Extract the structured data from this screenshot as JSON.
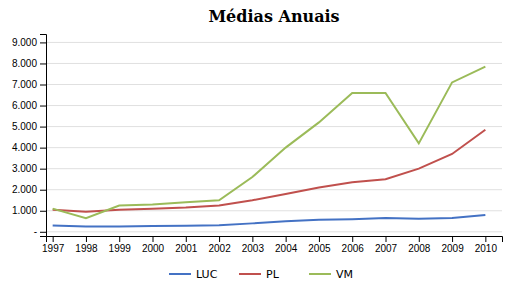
{
  "chart_data": {
    "type": "line",
    "title": "Médias Anuais",
    "x": [
      1997,
      1998,
      1999,
      2000,
      2001,
      2002,
      2003,
      2004,
      2005,
      2006,
      2007,
      2008,
      2009,
      2010
    ],
    "series": [
      {
        "name": "LUC",
        "color": "#4472C4",
        "values": [
          300,
          250,
          250,
          280,
          290,
          310,
          400,
          500,
          570,
          600,
          650,
          620,
          650,
          800
        ]
      },
      {
        "name": "PL",
        "color": "#C0504D",
        "values": [
          1050,
          950,
          1050,
          1100,
          1150,
          1250,
          1500,
          1800,
          2100,
          2350,
          2500,
          3000,
          3700,
          4850
        ]
      },
      {
        "name": "VM",
        "color": "#9BBB59",
        "values": [
          1100,
          650,
          1250,
          1300,
          1400,
          1500,
          2600,
          4000,
          5200,
          6600,
          6600,
          4200,
          7100,
          7850
        ]
      }
    ],
    "xlim": [
      1996.8,
      2010.5
    ],
    "xticks": [
      1997,
      1998,
      1999,
      2000,
      2001,
      2002,
      2003,
      2004,
      2005,
      2006,
      2007,
      2008,
      2009,
      2010
    ],
    "ylim": [
      -200,
      9400
    ],
    "yticks": [
      {
        "value": 0,
        "label": "-"
      },
      {
        "value": 1000,
        "label": "1.000"
      },
      {
        "value": 2000,
        "label": "2.000"
      },
      {
        "value": 3000,
        "label": "3.000"
      },
      {
        "value": 4000,
        "label": "4.000"
      },
      {
        "value": 5000,
        "label": "5.000"
      },
      {
        "value": 6000,
        "label": "6.000"
      },
      {
        "value": 7000,
        "label": "7.000"
      },
      {
        "value": 8000,
        "label": "8.000"
      },
      {
        "value": 9000,
        "label": "9.000"
      }
    ],
    "grid": true,
    "legend": "bottom"
  }
}
